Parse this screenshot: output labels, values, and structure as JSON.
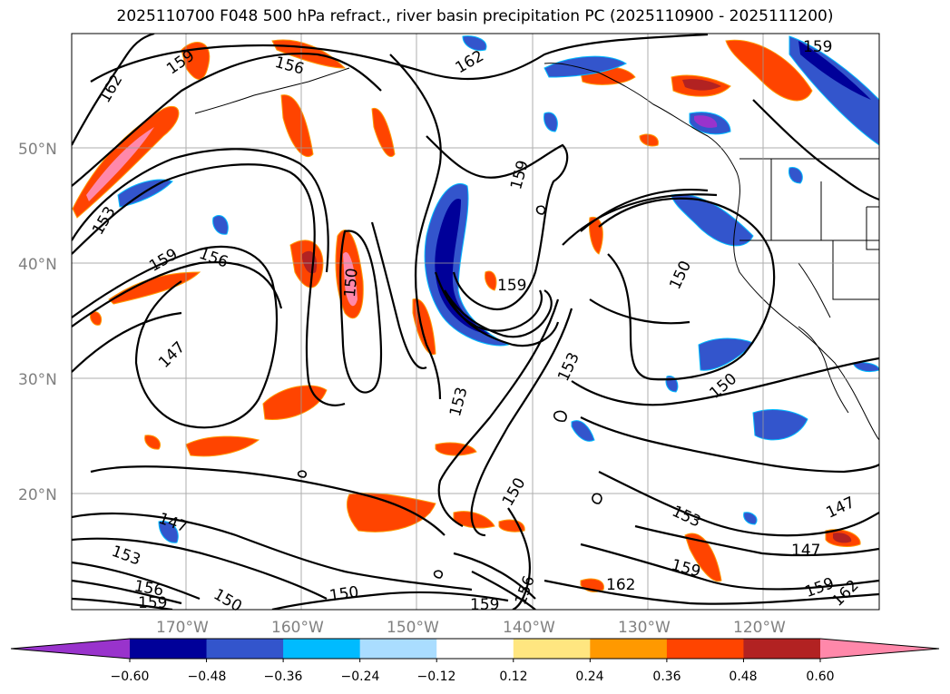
{
  "title": "2025110700 F048 500 hPa refract., river basin precipitation PC (2025110900 - 2025111200)",
  "map": {
    "lat_labels": [
      "50°N",
      "40°N",
      "30°N",
      "20°N"
    ],
    "lon_labels": [
      "170°W",
      "160°W",
      "150°W",
      "140°W",
      "130°W",
      "120°W"
    ],
    "contour_labels": [
      {
        "text": "159"
      },
      {
        "text": "156"
      },
      {
        "text": "162"
      },
      {
        "text": "162"
      },
      {
        "text": "159"
      },
      {
        "text": "153"
      },
      {
        "text": "159"
      },
      {
        "text": "156"
      },
      {
        "text": "150"
      },
      {
        "text": "159"
      },
      {
        "text": "159"
      },
      {
        "text": "150"
      },
      {
        "text": "147"
      },
      {
        "text": "153"
      },
      {
        "text": "153"
      },
      {
        "text": "150"
      },
      {
        "text": "150"
      },
      {
        "text": "147"
      },
      {
        "text": "153"
      },
      {
        "text": "156"
      },
      {
        "text": "159"
      },
      {
        "text": "150"
      },
      {
        "text": "150"
      },
      {
        "text": "159"
      },
      {
        "text": "156"
      },
      {
        "text": "162"
      },
      {
        "text": "153"
      },
      {
        "text": "159"
      },
      {
        "text": "147"
      },
      {
        "text": "147"
      },
      {
        "text": "159"
      },
      {
        "text": "162"
      }
    ]
  },
  "colorbar": {
    "ticks": [
      "−0.60",
      "−0.48",
      "−0.36",
      "−0.24",
      "−0.12",
      "0.12",
      "0.24",
      "0.36",
      "0.48",
      "0.60"
    ],
    "colors": [
      "#9933cc",
      "#000099",
      "#3355cc",
      "#00bbff",
      "#aaddff",
      "#ffffff",
      "#ffe680",
      "#ff9900",
      "#ff4400",
      "#b22222",
      "#ff88aa"
    ]
  },
  "fill_colors": {
    "neg_strong": "#000099",
    "neg_mid": "#3355cc",
    "neg_light": "#00bbff",
    "pos_light": "#ff9900",
    "pos_mid": "#ff4400",
    "pos_strong": "#b22222",
    "pos_max": "#ff88aa",
    "neg_max": "#9933cc"
  }
}
